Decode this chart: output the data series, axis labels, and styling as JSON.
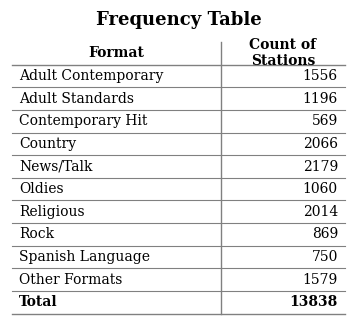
{
  "title": "Frequency Table",
  "col1_header": "Format",
  "col2_header": "Count of\nStations",
  "rows": [
    [
      "Adult Contemporary",
      "1556"
    ],
    [
      "Adult Standards",
      "1196"
    ],
    [
      "Contemporary Hit",
      "569"
    ],
    [
      "Country",
      "2066"
    ],
    [
      "News/Talk",
      "2179"
    ],
    [
      "Oldies",
      "1060"
    ],
    [
      "Religious",
      "2014"
    ],
    [
      "Rock",
      "869"
    ],
    [
      "Spanish Language",
      "750"
    ],
    [
      "Other Formats",
      "1579"
    ]
  ],
  "total_label": "Total",
  "total_value": "13838",
  "bg_color": "#ffffff",
  "line_color": "#808080",
  "text_color": "#000000",
  "title_fontsize": 13,
  "header_fontsize": 10,
  "body_fontsize": 10
}
